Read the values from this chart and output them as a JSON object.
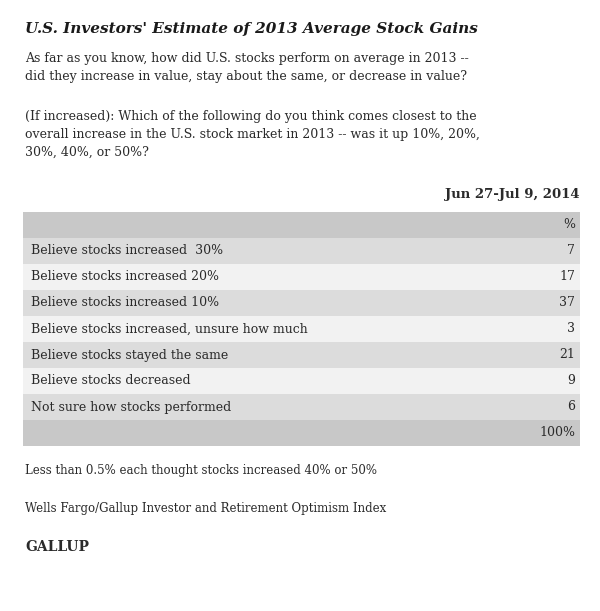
{
  "title": "U.S. Investors' Estimate of 2013 Average Stock Gains",
  "question1": "As far as you know, how did U.S. stocks perform on average in 2013 --\ndid they increase in value, stay about the same, or decrease in value?",
  "question2": "(If increased): Which of the following do you think comes closest to the\noverall increase in the U.S. stock market in 2013 -- was it up 10%, 20%,\n30%, 40%, or 50%?",
  "date_label": "Jun 27-Jul 9, 2014",
  "pct_label": "%",
  "rows": [
    {
      "label": "Believe stocks increased  30%",
      "value": "7"
    },
    {
      "label": "Believe stocks increased 20%",
      "value": "17"
    },
    {
      "label": "Believe stocks increased 10%",
      "value": "37"
    },
    {
      "label": "Believe stocks increased, unsure how much",
      "value": "3"
    },
    {
      "label": "Believe stocks stayed the same",
      "value": "21"
    },
    {
      "label": "Believe stocks decreased",
      "value": "9"
    },
    {
      "label": "Not sure how stocks performed",
      "value": "6"
    }
  ],
  "total_label": "100%",
  "footnote1": "Less than 0.5% each thought stocks increased 40% or 50%",
  "footnote2": "Wells Fargo/Gallup Investor and Retirement Optimism Index",
  "footnote3": "GALLUP",
  "bg_color": "#ffffff",
  "row_shaded_color": "#dcdcdc",
  "row_white_color": "#f2f2f2",
  "text_color": "#2a2a2a",
  "header_shaded_color": "#c8c8c8",
  "title_color": "#1a1a1a"
}
